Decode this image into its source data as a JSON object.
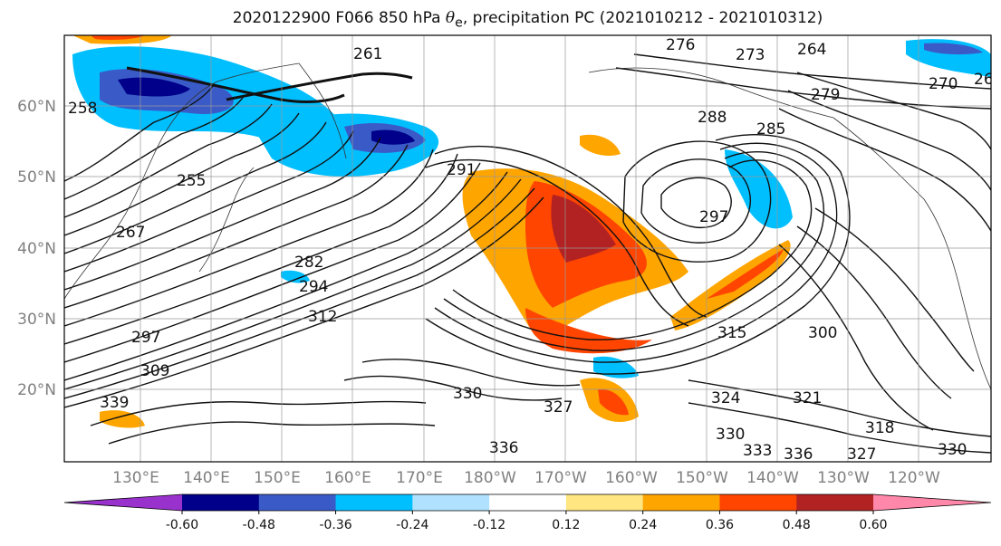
{
  "title": {
    "prefix": "2020122900 F066 850 hPa ",
    "symbol": "θ",
    "subscript": "e",
    "suffix": ", precipitation PC (2021010212 - 2021010312)"
  },
  "lat_labels": [
    "60°N",
    "50°N",
    "40°N",
    "30°N",
    "20°N"
  ],
  "lon_labels": [
    "130°E",
    "140°E",
    "150°E",
    "160°E",
    "170°E",
    "180°W",
    "170°W",
    "160°W",
    "150°W",
    "140°W",
    "130°W",
    "120°W"
  ],
  "contour_labels": [
    "276",
    "273",
    "264",
    "270",
    "26",
    "279",
    "285",
    "288",
    "291",
    "297",
    "294",
    "282",
    "261",
    "258",
    "255",
    "267",
    "297",
    "309",
    "339",
    "315",
    "300",
    "324",
    "321",
    "318",
    "330",
    "333",
    "336",
    "327",
    "312",
    "330",
    "336",
    "330",
    "327"
  ],
  "colorbar": {
    "levels": [
      "-0.60",
      "-0.48",
      "-0.36",
      "-0.24",
      "-0.12",
      "0.12",
      "0.24",
      "0.36",
      "0.48",
      "0.60"
    ],
    "colors": [
      "#9932cc",
      "#00008b",
      "#3a5bc7",
      "#00bfff",
      "#b0e2ff",
      "#ffffff",
      "#ffe680",
      "#ffa500",
      "#ff4500",
      "#b22222",
      "#ff88aa"
    ]
  },
  "shading_colors": {
    "strong_positive": "#b22222",
    "positive": "#ff4500",
    "moderate_positive": "#ffa500",
    "weak_positive": "#ffe680",
    "weak_negative": "#b0e2ff",
    "moderate_negative": "#00bfff",
    "negative": "#3a5bc7",
    "strong_negative": "#00008b"
  }
}
